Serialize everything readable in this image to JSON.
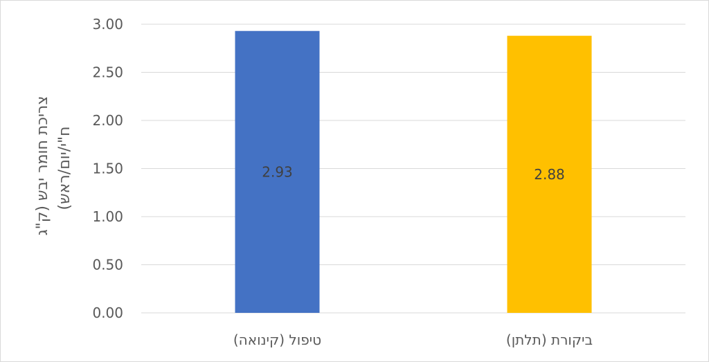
{
  "chart_data": {
    "type": "bar",
    "title": "",
    "xlabel": "",
    "ylabel_line1": "צריכת חומר יבש (ק\"ג",
    "ylabel_line2": "ח\"י/יום/ראש)",
    "categories": [
      "טיפול (קינואה)",
      "ביקורת (תלתן)"
    ],
    "values": [
      2.93,
      2.88
    ],
    "value_labels": [
      "2.93",
      "2.88"
    ],
    "colors": [
      "#4472c4",
      "#ffc000"
    ],
    "ylim": [
      0,
      3
    ],
    "yticks": [
      "0.00",
      "0.50",
      "1.00",
      "1.50",
      "2.00",
      "2.50",
      "3.00"
    ],
    "grid": true,
    "legend": "none"
  }
}
